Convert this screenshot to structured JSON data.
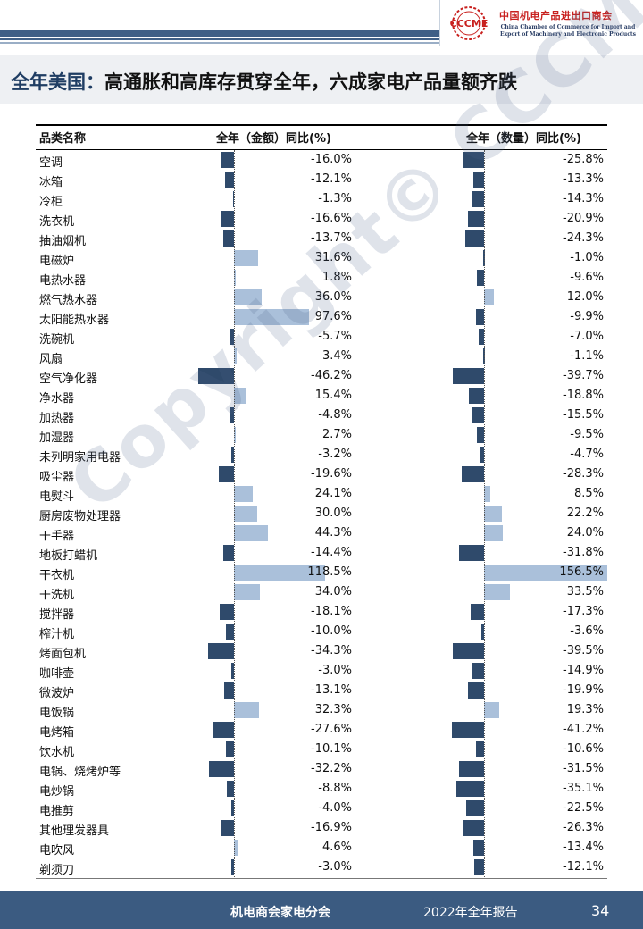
{
  "header": {
    "logo_mark": "CCCME",
    "org_cn": "中国机电产品进出口商会",
    "org_en": "China Chamber of Commerce for Import and Export of Machinery and Electronic Products"
  },
  "title": {
    "prefix": "全年美国：",
    "main": "高通胀和高库存贯穿全年，六成家电产品量额齐跌"
  },
  "table": {
    "headers": {
      "category": "品类名称",
      "value": "全年（金额）同比(%)",
      "quantity": "全年（数量）同比(%)"
    },
    "rows": [
      {
        "cat": "空调",
        "v": -16.0,
        "vl": "-16.0%",
        "q": -25.8,
        "ql": "-25.8%"
      },
      {
        "cat": "冰箱",
        "v": -12.1,
        "vl": "-12.1%",
        "q": -13.3,
        "ql": "-13.3%"
      },
      {
        "cat": "冷柜",
        "v": -1.3,
        "vl": "-1.3%",
        "q": -14.3,
        "ql": "-14.3%"
      },
      {
        "cat": "洗衣机",
        "v": -16.6,
        "vl": "-16.6%",
        "q": -20.9,
        "ql": "-20.9%"
      },
      {
        "cat": "抽油烟机",
        "v": -13.7,
        "vl": "-13.7%",
        "q": -24.3,
        "ql": "-24.3%"
      },
      {
        "cat": "电磁炉",
        "v": 31.6,
        "vl": "31.6%",
        "q": -1.0,
        "ql": "-1.0%"
      },
      {
        "cat": "电热水器",
        "v": 1.8,
        "vl": "1.8%",
        "q": -9.6,
        "ql": "-9.6%"
      },
      {
        "cat": "燃气热水器",
        "v": 36.0,
        "vl": "36.0%",
        "q": 12.0,
        "ql": "12.0%"
      },
      {
        "cat": "太阳能热水器",
        "v": 97.6,
        "vl": "97.6%",
        "q": -9.9,
        "ql": "-9.9%"
      },
      {
        "cat": "洗碗机",
        "v": -5.7,
        "vl": "-5.7%",
        "q": -7.0,
        "ql": "-7.0%"
      },
      {
        "cat": "风扇",
        "v": 3.4,
        "vl": "3.4%",
        "q": -1.1,
        "ql": "-1.1%"
      },
      {
        "cat": "空气净化器",
        "v": -46.2,
        "vl": "-46.2%",
        "q": -39.7,
        "ql": "-39.7%"
      },
      {
        "cat": "净水器",
        "v": 15.4,
        "vl": "15.4%",
        "q": -18.8,
        "ql": "-18.8%"
      },
      {
        "cat": "加热器",
        "v": -4.8,
        "vl": "-4.8%",
        "q": -15.5,
        "ql": "-15.5%"
      },
      {
        "cat": "加湿器",
        "v": 2.7,
        "vl": "2.7%",
        "q": -9.5,
        "ql": "-9.5%"
      },
      {
        "cat": "未列明家用电器",
        "v": -3.2,
        "vl": "-3.2%",
        "q": -4.7,
        "ql": "-4.7%"
      },
      {
        "cat": "吸尘器",
        "v": -19.6,
        "vl": "-19.6%",
        "q": -28.3,
        "ql": "-28.3%"
      },
      {
        "cat": "电熨斗",
        "v": 24.1,
        "vl": "24.1%",
        "q": 8.5,
        "ql": "8.5%"
      },
      {
        "cat": "厨房废物处理器",
        "v": 30.0,
        "vl": "30.0%",
        "q": 22.2,
        "ql": "22.2%"
      },
      {
        "cat": "干手器",
        "v": 44.3,
        "vl": "44.3%",
        "q": 24.0,
        "ql": "24.0%"
      },
      {
        "cat": "地板打蜡机",
        "v": -14.4,
        "vl": "-14.4%",
        "q": -31.8,
        "ql": "-31.8%"
      },
      {
        "cat": "干衣机",
        "v": 118.5,
        "vl": "118.5%",
        "q": 156.5,
        "ql": "156.5%"
      },
      {
        "cat": "干洗机",
        "v": 34.0,
        "vl": "34.0%",
        "q": 33.5,
        "ql": "33.5%"
      },
      {
        "cat": "搅拌器",
        "v": -18.1,
        "vl": "-18.1%",
        "q": -17.3,
        "ql": "-17.3%"
      },
      {
        "cat": "榨汁机",
        "v": -10.0,
        "vl": "-10.0%",
        "q": -3.6,
        "ql": "-3.6%"
      },
      {
        "cat": "烤面包机",
        "v": -34.3,
        "vl": "-34.3%",
        "q": -39.5,
        "ql": "-39.5%"
      },
      {
        "cat": "咖啡壶",
        "v": -3.0,
        "vl": "-3.0%",
        "q": -14.9,
        "ql": "-14.9%"
      },
      {
        "cat": "微波炉",
        "v": -13.1,
        "vl": "-13.1%",
        "q": -19.9,
        "ql": "-19.9%"
      },
      {
        "cat": "电饭锅",
        "v": 32.3,
        "vl": "32.3%",
        "q": 19.3,
        "ql": "19.3%"
      },
      {
        "cat": "电烤箱",
        "v": -27.6,
        "vl": "-27.6%",
        "q": -41.2,
        "ql": "-41.2%"
      },
      {
        "cat": "饮水机",
        "v": -10.1,
        "vl": "-10.1%",
        "q": -10.6,
        "ql": "-10.6%"
      },
      {
        "cat": "电锅、烧烤炉等",
        "v": -32.2,
        "vl": "-32.2%",
        "q": -31.5,
        "ql": "-31.5%"
      },
      {
        "cat": "电炒锅",
        "v": -8.8,
        "vl": "-8.8%",
        "q": -35.1,
        "ql": "-35.1%"
      },
      {
        "cat": "电推剪",
        "v": -4.0,
        "vl": "-4.0%",
        "q": -22.5,
        "ql": "-22.5%"
      },
      {
        "cat": "其他理发器具",
        "v": -16.9,
        "vl": "-16.9%",
        "q": -26.3,
        "ql": "-26.3%"
      },
      {
        "cat": "电吹风",
        "v": 4.6,
        "vl": "4.6%",
        "q": -13.4,
        "ql": "-13.4%"
      },
      {
        "cat": "剃须刀",
        "v": -3.0,
        "vl": "-3.0%",
        "q": -12.1,
        "ql": "-12.1%"
      }
    ]
  },
  "colors": {
    "negative_bar": "#2f4a6b",
    "positive_bar": "#aac0da",
    "brand": "#3b5b81"
  },
  "watermark": "Copyright© CCCME",
  "footer": {
    "org": "机电商会家电分会",
    "report": "2022年全年报告",
    "page": "34"
  }
}
